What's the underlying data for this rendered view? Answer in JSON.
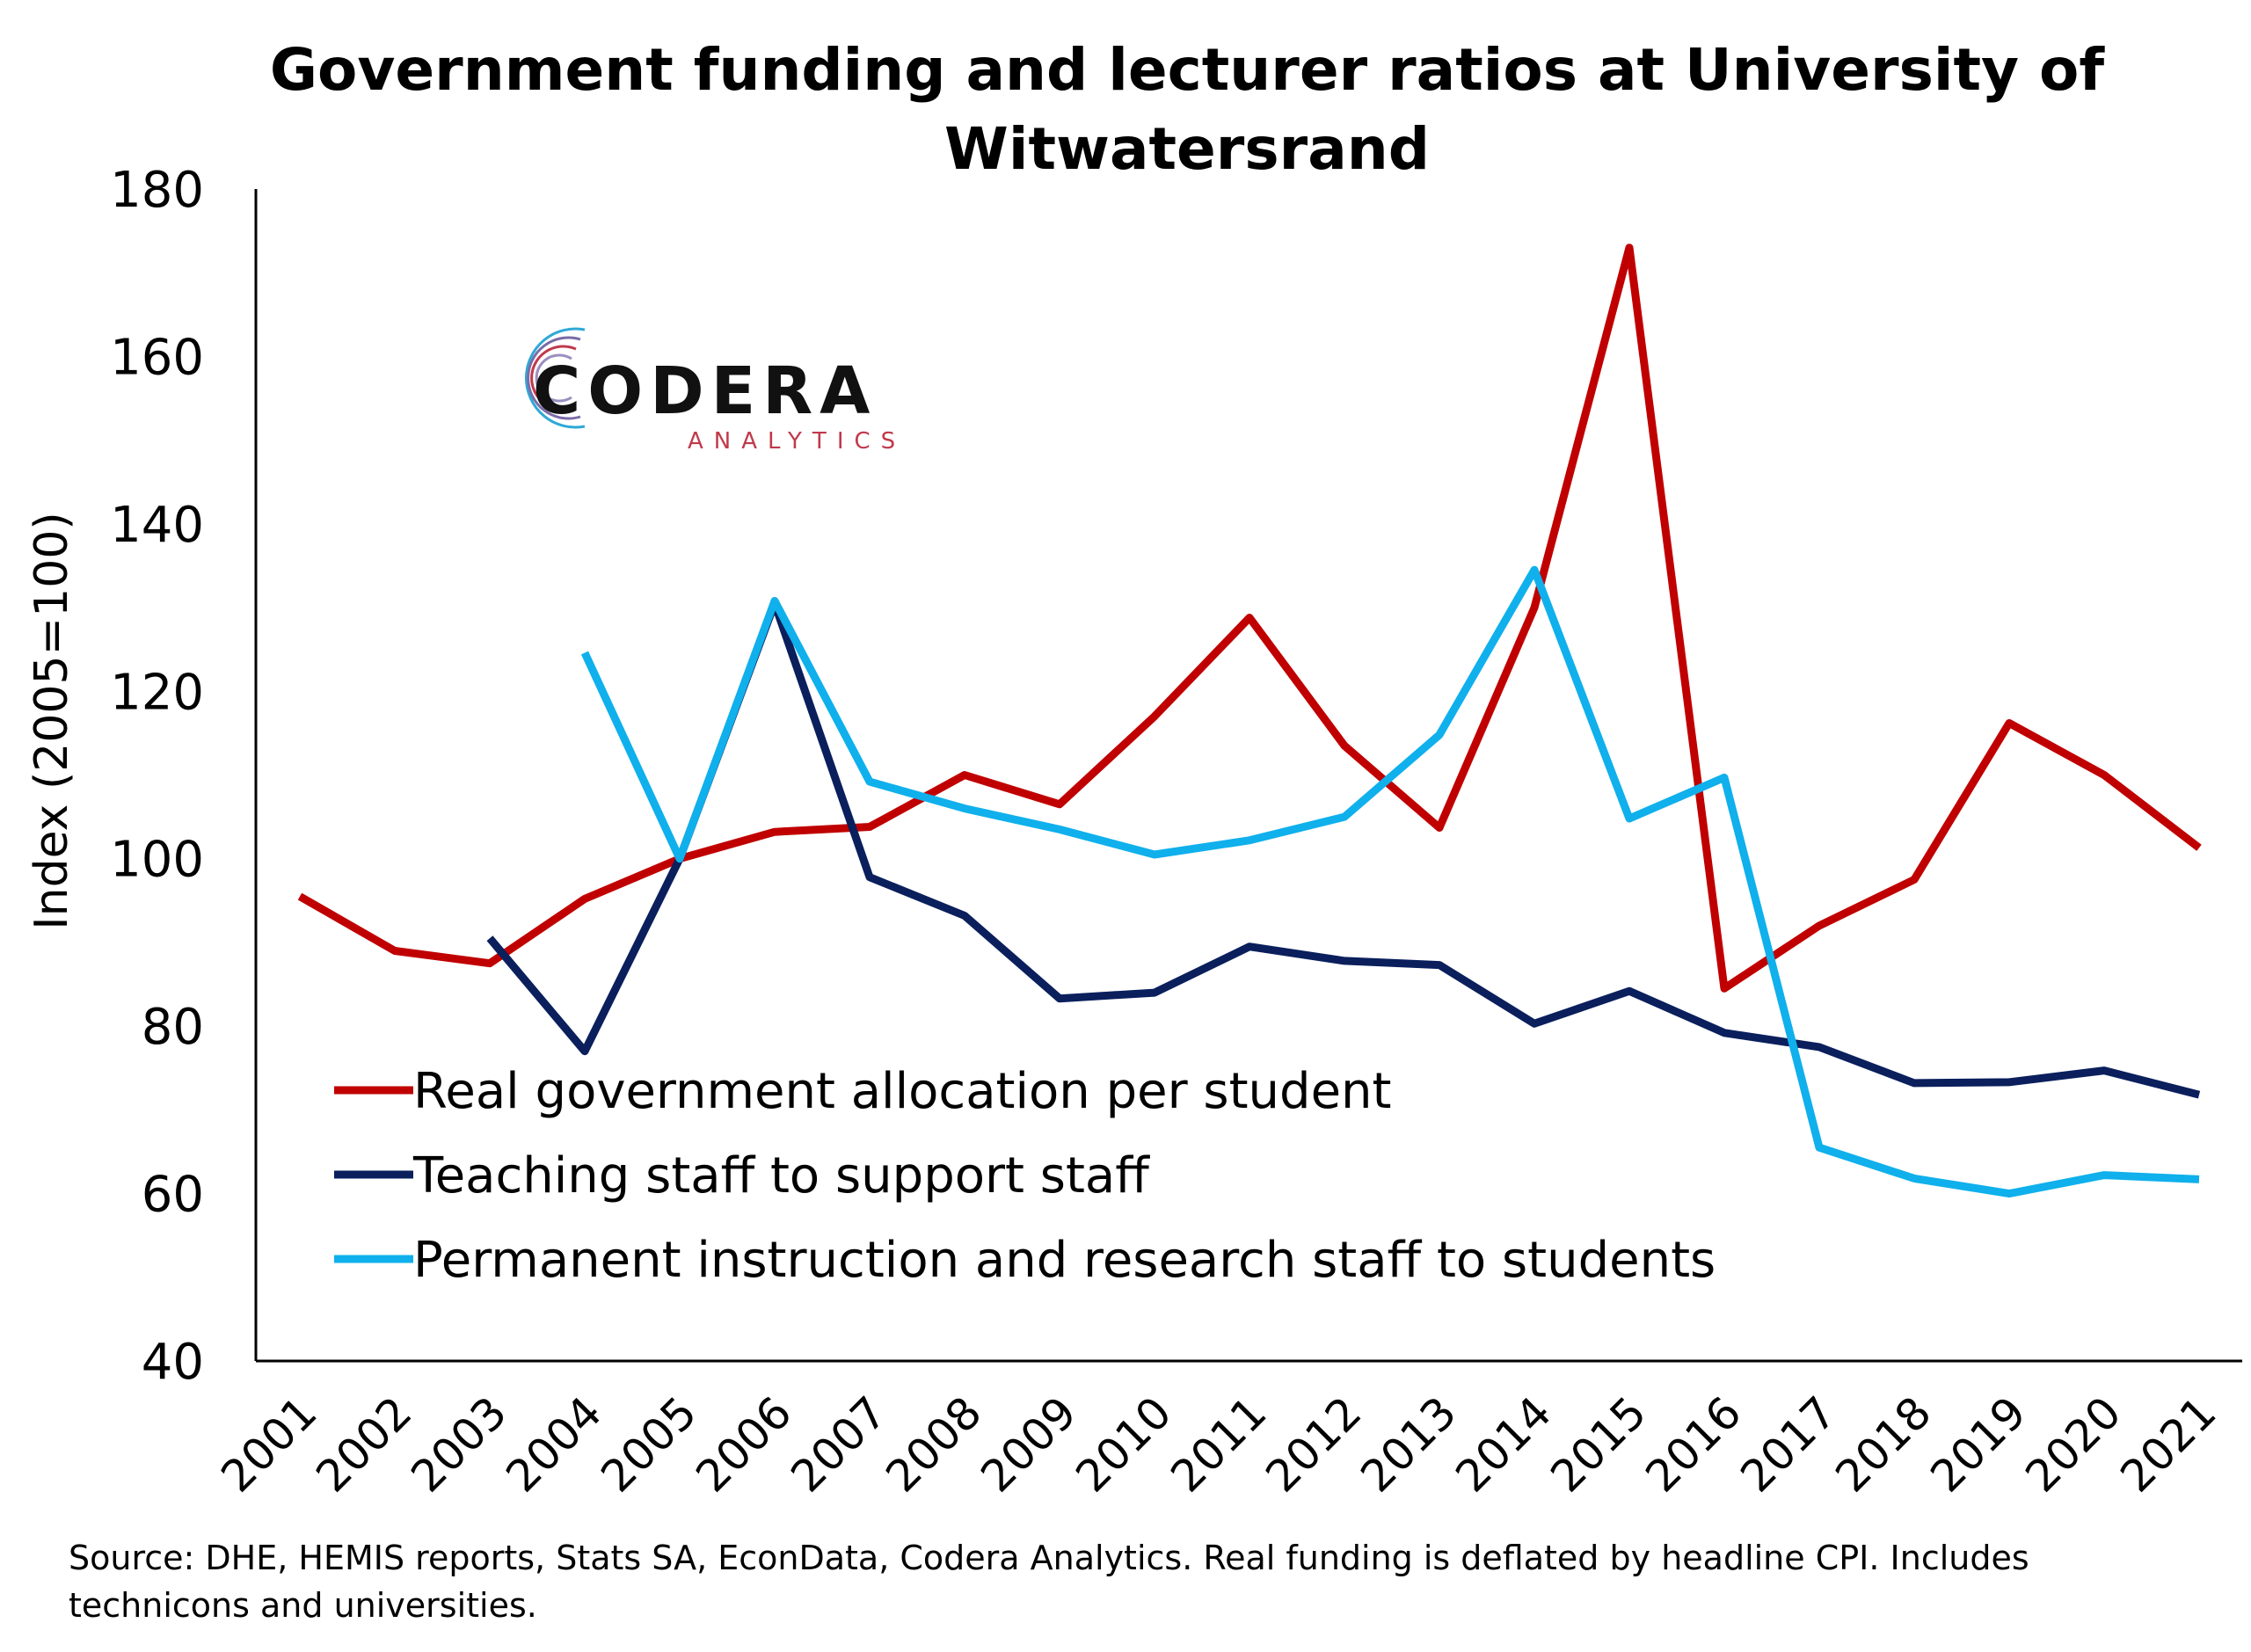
{
  "chart_data": {
    "type": "line",
    "title": "Government funding and lecturer ratios at University of Witwatersrand",
    "title_lines": [
      "Government funding and lecturer ratios at University of",
      "Witwatersrand"
    ],
    "ylabel": "Index (2005=100)",
    "xlabel": "",
    "ylim": [
      40,
      180
    ],
    "yticks": [
      40,
      60,
      80,
      100,
      120,
      140,
      160,
      180
    ],
    "grid": false,
    "legend_position": "bottom-left",
    "categories": [
      "2001",
      "2002",
      "2003",
      "2004",
      "2005",
      "2006",
      "2007",
      "2008",
      "2009",
      "2010",
      "2011",
      "2012",
      "2013",
      "2014",
      "2015",
      "2016",
      "2017",
      "2018",
      "2019",
      "2020",
      "2021"
    ],
    "series": [
      {
        "name": "Real government allocation per student",
        "color": "#c00000",
        "values": [
          95.5,
          89,
          87.5,
          95.2,
          100,
          103.2,
          103.8,
          110,
          106.5,
          117,
          128.8,
          113.5,
          103.7,
          130,
          173,
          84.5,
          92,
          97.5,
          116.2,
          110,
          101.3
        ]
      },
      {
        "name": "Teaching staff to support staff",
        "color": "#0a1f5c",
        "values": [
          null,
          null,
          90.5,
          77,
          100,
          130.5,
          97.8,
          93.2,
          83.3,
          84,
          89.5,
          87.8,
          87.3,
          80.3,
          84.2,
          79.2,
          77.5,
          73.2,
          73.3,
          74.7,
          71.8
        ]
      },
      {
        "name": "Permanent instruction and research staff to students",
        "color": "#0fb0ec",
        "values": [
          null,
          null,
          null,
          124.6,
          100,
          130.8,
          109.2,
          106,
          103.5,
          100.5,
          102.2,
          105,
          114.8,
          134.5,
          104.8,
          109.7,
          65.5,
          61.8,
          60,
          62.2,
          61.7
        ]
      }
    ]
  },
  "logo": {
    "name": "CODERA",
    "subtitle": "ANALYTICS",
    "subtitle_color": "#c0394b",
    "subtitle_accent_color": "#2fa9d6"
  },
  "source_note": "Source: DHE, HEMIS reports, Stats SA, EconData, Codera Analytics. Real funding is deflated by headline CPI. Includes technicons and universities."
}
